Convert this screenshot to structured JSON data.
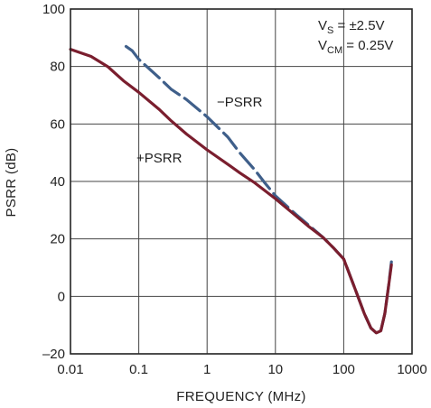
{
  "chart_data": {
    "type": "line",
    "xlabel": "FREQUENCY (MHz)",
    "ylabel": "PSRR (dB)",
    "x_scale": "log",
    "xlim": [
      0.01,
      1000
    ],
    "ylim": [
      -20,
      100
    ],
    "grid": true,
    "x_ticks": [
      "0.01",
      "0.1",
      "1",
      "10",
      "100",
      "1000"
    ],
    "y_ticks": [
      "100",
      "80",
      "60",
      "40",
      "20",
      "0",
      "–20"
    ],
    "x_tick_values": [
      0.01,
      0.1,
      1,
      10,
      100,
      1000
    ],
    "y_tick_values": [
      100,
      80,
      60,
      40,
      20,
      0,
      -20
    ],
    "conditions": {
      "vs": {
        "main": "V",
        "sub": "S",
        "rest": " = ±2.5V"
      },
      "vcm": {
        "main": "V",
        "sub": "CM",
        "rest": " = 0.25V"
      }
    },
    "series": [
      {
        "name": "+PSRR",
        "label_text": "+PSRR",
        "color": "#7a1e2e",
        "style": "solid",
        "points": [
          [
            0.01,
            86
          ],
          [
            0.02,
            83.5
          ],
          [
            0.035,
            80
          ],
          [
            0.06,
            75
          ],
          [
            0.1,
            71
          ],
          [
            0.2,
            65
          ],
          [
            0.3,
            61
          ],
          [
            0.5,
            56.5
          ],
          [
            1,
            51
          ],
          [
            2,
            46
          ],
          [
            3,
            43
          ],
          [
            5,
            39.5
          ],
          [
            10,
            34
          ],
          [
            20,
            28
          ],
          [
            30,
            24.5
          ],
          [
            50,
            20.5
          ],
          [
            70,
            17
          ],
          [
            100,
            13
          ],
          [
            150,
            2
          ],
          [
            200,
            -6
          ],
          [
            250,
            -11
          ],
          [
            300,
            -12.7
          ],
          [
            350,
            -12
          ],
          [
            400,
            -6
          ],
          [
            450,
            3
          ],
          [
            500,
            11
          ]
        ]
      },
      {
        "name": "−PSRR",
        "label_text": "−PSRR",
        "color": "#3f5f8a",
        "style": "dashed",
        "points": [
          [
            0.065,
            87
          ],
          [
            0.08,
            85.5
          ],
          [
            0.1,
            82.5
          ],
          [
            0.2,
            76
          ],
          [
            0.3,
            72
          ],
          [
            0.5,
            68.5
          ],
          [
            1,
            62.5
          ],
          [
            2,
            55.5
          ],
          [
            3,
            50
          ],
          [
            5,
            44
          ],
          [
            7,
            39.5
          ],
          [
            10,
            35
          ],
          [
            20,
            28.5
          ],
          [
            30,
            25
          ],
          [
            50,
            20.5
          ],
          [
            70,
            17
          ],
          [
            100,
            13
          ],
          [
            150,
            2
          ],
          [
            200,
            -6
          ],
          [
            250,
            -11
          ],
          [
            300,
            -12.7
          ],
          [
            350,
            -12
          ],
          [
            400,
            -6
          ],
          [
            450,
            3
          ],
          [
            500,
            12
          ]
        ]
      }
    ]
  }
}
